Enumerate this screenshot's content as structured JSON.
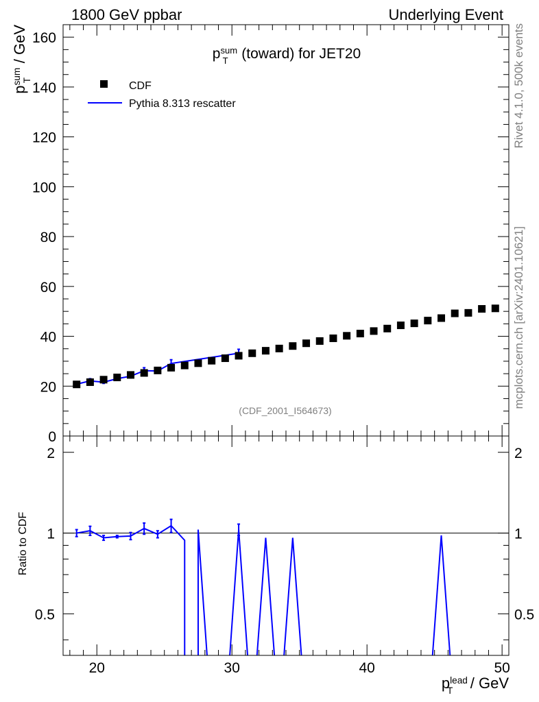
{
  "chart_data": [
    {
      "type": "scatter",
      "panel": "main",
      "header_left": "1800 GeV ppbar",
      "header_right": "Underlying Event",
      "title": {
        "main": "p",
        "sup": "sum",
        "sub": "T",
        "rest": " (toward) for JET20"
      },
      "ylabel": {
        "main": "p",
        "sup": "sum",
        "sub": "T",
        "rest": " / GeV"
      },
      "ylim": [
        0,
        165
      ],
      "yticks": [
        0,
        20,
        40,
        60,
        80,
        100,
        120,
        140,
        160
      ],
      "xlim": [
        17.5,
        50.5
      ],
      "legend": [
        {
          "label": "CDF",
          "marker": "square",
          "color": "#000000"
        },
        {
          "label": "Pythia 8.313 rescatter",
          "marker": "line",
          "color": "#0000ff"
        }
      ],
      "annotation": "(CDF_2001_I564673)",
      "series": [
        {
          "name": "CDF",
          "color": "#000000",
          "x": [
            18.5,
            19.5,
            20.5,
            21.5,
            22.5,
            23.5,
            24.5,
            25.5,
            26.5,
            27.5,
            28.5,
            29.5,
            30.5,
            31.5,
            32.5,
            33.5,
            34.5,
            35.5,
            36.5,
            37.5,
            38.5,
            39.5,
            40.5,
            41.5,
            42.5,
            43.5,
            44.5,
            45.5,
            46.5,
            47.5,
            48.5,
            49.5
          ],
          "y": [
            20.7,
            21.6,
            22.6,
            23.5,
            24.5,
            25.3,
            26.3,
            27.4,
            28.3,
            29.2,
            30.2,
            31.2,
            32.2,
            33.2,
            34.2,
            35.1,
            36.1,
            37.2,
            38.1,
            39.2,
            40.2,
            41.1,
            42.1,
            43.1,
            44.4,
            45.2,
            46.3,
            47.3,
            49.2,
            49.4,
            51.0,
            51.2
          ]
        },
        {
          "name": "Pythia 8.313 rescatter",
          "color": "#0000ff",
          "x": [
            18.5,
            19.5,
            20.5,
            21.5,
            22.5,
            23.5,
            24.5,
            25.5,
            30.5
          ],
          "y": [
            20.8,
            22.1,
            21.6,
            23.0,
            24.0,
            26.2,
            26.1,
            29.1,
            33.2
          ],
          "yerr": [
            0.8,
            0.9,
            0.5,
            0.4,
            0.7,
            1.2,
            0.8,
            1.5,
            1.6
          ]
        }
      ]
    },
    {
      "type": "line",
      "panel": "ratio",
      "ylabel": "Ratio to CDF",
      "yscale": "log",
      "ylim": [
        0.35,
        2.3
      ],
      "yticks": [
        0.5,
        1,
        2
      ],
      "yticklabels": [
        "0.5",
        "1",
        "2"
      ],
      "xlabel": {
        "main": "p",
        "sup": "lead",
        "sub": "T",
        "rest": " / GeV"
      },
      "xlim": [
        17.5,
        50.5
      ],
      "xticks": [
        20,
        30,
        40,
        50
      ],
      "xticklabels": [
        "20",
        "30",
        "40",
        "50"
      ],
      "reference": 1,
      "series": [
        {
          "name": "Pythia 8.313 rescatter / CDF",
          "color": "#0000ff",
          "points": [
            {
              "x": 18.5,
              "y": 1.0,
              "err": 0.03
            },
            {
              "x": 19.5,
              "y": 1.02,
              "err": 0.04
            },
            {
              "x": 20.5,
              "y": 0.96,
              "err": 0.02
            },
            {
              "x": 21.5,
              "y": 0.97,
              "err": 0.01
            },
            {
              "x": 22.5,
              "y": 0.975,
              "err": 0.03
            },
            {
              "x": 23.5,
              "y": 1.04,
              "err": 0.05
            },
            {
              "x": 24.5,
              "y": 0.99,
              "err": 0.03
            },
            {
              "x": 25.5,
              "y": 1.065,
              "err": 0.06
            },
            {
              "x": 26.5,
              "y": 0.94
            },
            {
              "x": 26.5,
              "y": 0.2
            },
            {
              "x": 27.5,
              "y": 0.2
            },
            {
              "x": 27.5,
              "y": 1.03
            },
            {
              "x": 28.5,
              "y": 0.2
            },
            {
              "x": 29.5,
              "y": 0.2
            },
            {
              "x": 30.5,
              "y": 1.03,
              "err": 0.05
            },
            {
              "x": 31.5,
              "y": 0.2
            },
            {
              "x": 32.5,
              "y": 0.96
            },
            {
              "x": 33.5,
              "y": 0.2
            },
            {
              "x": 34.5,
              "y": 0.96
            },
            {
              "x": 35.5,
              "y": 0.2
            },
            {
              "x": 44.5,
              "y": 0.2
            },
            {
              "x": 45.5,
              "y": 0.98
            },
            {
              "x": 46.5,
              "y": 0.2
            }
          ]
        }
      ]
    }
  ],
  "side_labels": {
    "rivet": "Rivet 4.1.0,  500k events",
    "mcplots": "mcplots.cern.ch [arXiv:2401.10621]"
  }
}
